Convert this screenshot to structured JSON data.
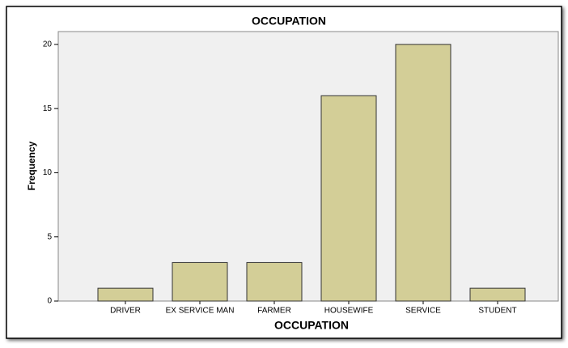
{
  "chart_data": {
    "type": "bar",
    "title": "OCCUPATION",
    "x_label": "OCCUPATION",
    "y_label": "Frequency",
    "categories": [
      "DRIVER",
      "EX SERVICE MAN",
      "FARMER",
      "HOUSEWIFE",
      "SERVICE",
      "STUDENT"
    ],
    "values": [
      1,
      3,
      3,
      16,
      20,
      1
    ],
    "color": "#d3ce97",
    "ylim": [
      0,
      21
    ],
    "yticks": [
      0,
      5,
      10,
      15,
      20
    ],
    "grid": false
  }
}
